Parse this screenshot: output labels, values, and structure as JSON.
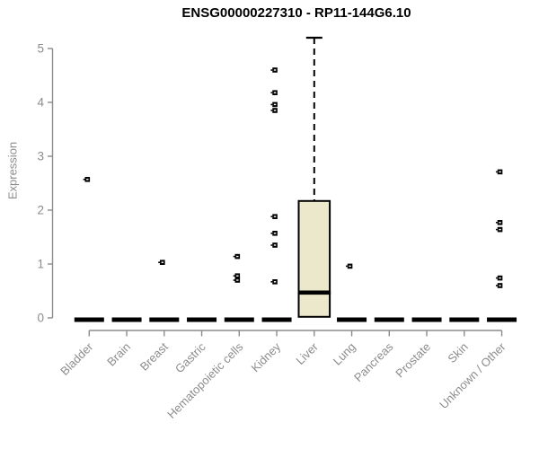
{
  "chart_data": {
    "type": "boxplot",
    "title": "ENSG00000227310 - RP11-144G6.10",
    "ylabel": "Expression",
    "xlabel": "",
    "ylim": [
      0,
      5
    ],
    "yticks": [
      0,
      1,
      2,
      3,
      4,
      5
    ],
    "grid": false,
    "legend": "none",
    "colors": {
      "box_fill": "#ece8cc",
      "box_stroke": "#000000",
      "median": "#000000",
      "whisker": "#000000",
      "outlier": "#000000",
      "axis": "#8c8c8c",
      "tick_label": "#8c8c8c",
      "title": "#000000"
    },
    "categories": [
      {
        "name": "Bladder",
        "q1": 0,
        "median": 0,
        "q3": 0,
        "whisker_low": 0,
        "whisker_high": 0,
        "outliers": [
          2.57
        ]
      },
      {
        "name": "Brain",
        "q1": 0,
        "median": 0,
        "q3": 0,
        "whisker_low": 0,
        "whisker_high": 0,
        "outliers": []
      },
      {
        "name": "Breast",
        "q1": 0,
        "median": 0,
        "q3": 0,
        "whisker_low": 0,
        "whisker_high": 0,
        "outliers": [
          1.03
        ]
      },
      {
        "name": "Gastric",
        "q1": 0,
        "median": 0,
        "q3": 0,
        "whisker_low": 0,
        "whisker_high": 0,
        "outliers": []
      },
      {
        "name": "Hematopoietic cells",
        "q1": 0,
        "median": 0,
        "q3": 0,
        "whisker_low": 0,
        "whisker_high": 0,
        "outliers": [
          1.14,
          0.78,
          0.7
        ]
      },
      {
        "name": "Kidney",
        "q1": 0,
        "median": 0,
        "q3": 0,
        "whisker_low": 0,
        "whisker_high": 0,
        "outliers": [
          4.6,
          4.18,
          3.96,
          3.85,
          1.88,
          1.57,
          1.35,
          0.67
        ]
      },
      {
        "name": "Liver",
        "q1": 0.02,
        "median": 0.47,
        "q3": 2.17,
        "whisker_low": 0.02,
        "whisker_high": 5.2,
        "outliers": []
      },
      {
        "name": "Lung",
        "q1": 0,
        "median": 0,
        "q3": 0,
        "whisker_low": 0,
        "whisker_high": 0,
        "outliers": [
          0.96
        ]
      },
      {
        "name": "Pancreas",
        "q1": 0,
        "median": 0,
        "q3": 0,
        "whisker_low": 0,
        "whisker_high": 0,
        "outliers": []
      },
      {
        "name": "Prostate",
        "q1": 0,
        "median": 0,
        "q3": 0,
        "whisker_low": 0,
        "whisker_high": 0,
        "outliers": []
      },
      {
        "name": "Skin",
        "q1": 0,
        "median": 0,
        "q3": 0,
        "whisker_low": 0,
        "whisker_high": 0,
        "outliers": []
      },
      {
        "name": "Unknown / Other",
        "q1": 0,
        "median": 0,
        "q3": 0,
        "whisker_low": 0,
        "whisker_high": 0,
        "outliers": [
          2.71,
          1.77,
          1.64,
          0.74,
          0.6
        ]
      }
    ]
  }
}
